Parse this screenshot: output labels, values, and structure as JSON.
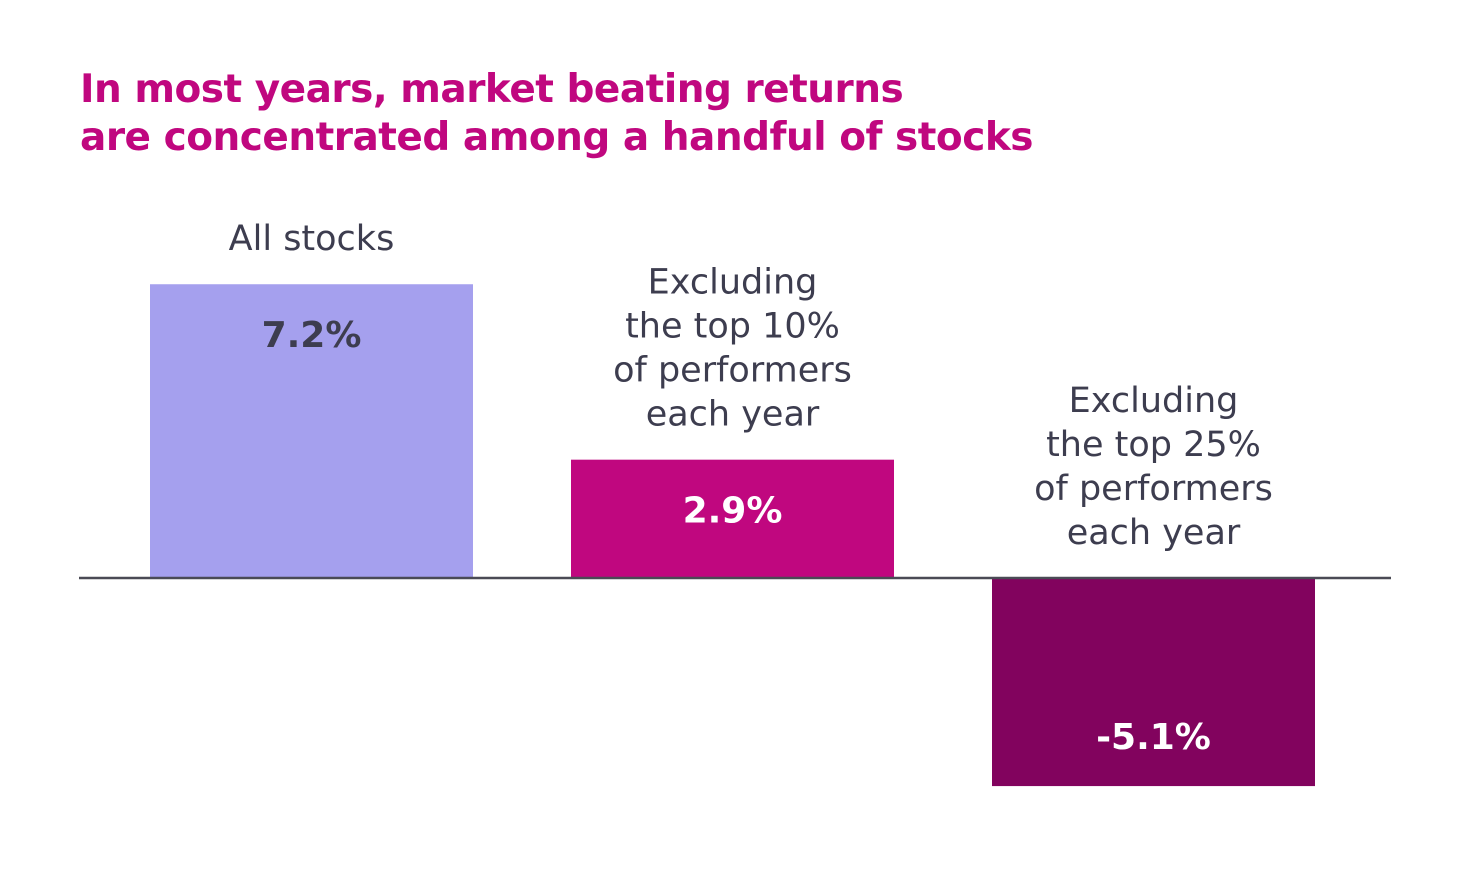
{
  "chart_data": {
    "type": "bar",
    "title_lines": [
      "In most years, market beating returns",
      "are concentrated among a handful of stocks"
    ],
    "categories": [
      [
        "All stocks"
      ],
      [
        "Excluding",
        "the top 10%",
        "of performers",
        "each year"
      ],
      [
        "Excluding",
        "the top 25%",
        "of performers",
        "each year"
      ]
    ],
    "values": [
      7.2,
      2.9,
      -5.1
    ],
    "value_labels": [
      "7.2%",
      "2.9%",
      "-5.1%"
    ],
    "colors": [
      "#a5a0ee",
      "#c0077f",
      "#82035e"
    ],
    "value_label_colors": [
      "#3d3d4f",
      "#ffffff",
      "#ffffff"
    ],
    "xlabel": "",
    "ylabel": "",
    "grid": false,
    "legend": "none"
  }
}
